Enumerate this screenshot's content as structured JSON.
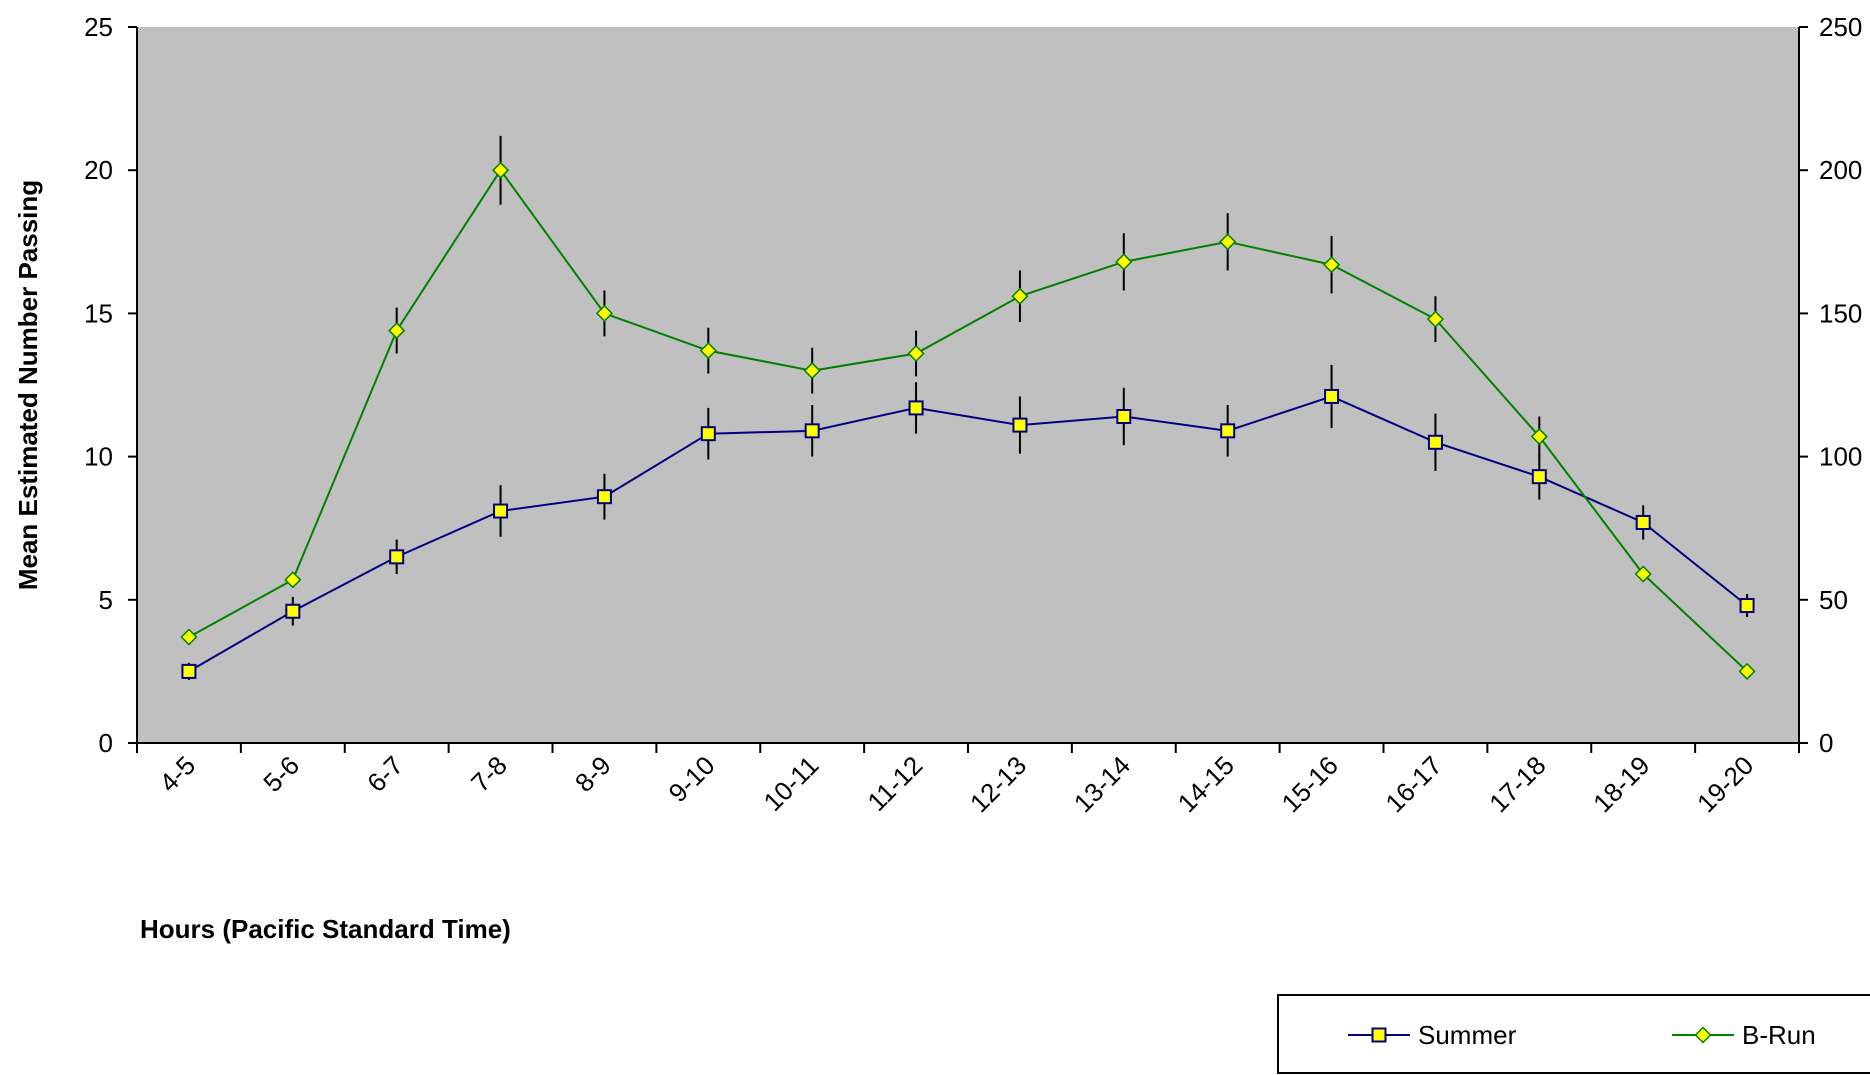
{
  "chart_data": {
    "type": "line",
    "categories": [
      "4-5",
      "5-6",
      "6-7",
      "7-8",
      "8-9",
      "9-10",
      "10-11",
      "11-12",
      "12-13",
      "13-14",
      "14-15",
      "15-16",
      "16-17",
      "17-18",
      "18-19",
      "19-20"
    ],
    "xlabel": "Hours (Pacific Standard Time)",
    "ylabel": "Mean Estimated Number Passing",
    "ylabel_right": "",
    "ylim": [
      0,
      25
    ],
    "y2lim": [
      0,
      250
    ],
    "yticks": [
      0,
      5,
      10,
      15,
      20,
      25
    ],
    "y2ticks": [
      0,
      50,
      100,
      150,
      200,
      250
    ],
    "grid": false,
    "plot_background": "#c0c0c0",
    "legend_position": "bottom-right",
    "series": [
      {
        "name": "Summer",
        "axis": "left",
        "color": "#000080",
        "marker": "square",
        "marker_fill": "#ffff00",
        "values": [
          2.5,
          4.6,
          6.5,
          8.1,
          8.6,
          10.8,
          10.9,
          11.7,
          11.1,
          11.4,
          10.9,
          12.1,
          10.5,
          9.3,
          7.7,
          4.8
        ],
        "error": [
          0.3,
          0.5,
          0.6,
          0.9,
          0.8,
          0.9,
          0.9,
          0.9,
          1.0,
          1.0,
          0.9,
          1.1,
          1.0,
          0.8,
          0.6,
          0.4
        ]
      },
      {
        "name": "B-Run",
        "axis": "right",
        "color": "#008000",
        "marker": "diamond",
        "marker_fill": "#ffff00",
        "values": [
          37,
          57,
          144,
          200,
          150,
          137,
          130,
          136,
          156,
          168,
          175,
          167,
          148,
          107,
          59,
          25
        ],
        "error": [
          0,
          0,
          8,
          12,
          8,
          8,
          8,
          8,
          9,
          10,
          10,
          10,
          8,
          7,
          0,
          0
        ]
      }
    ]
  }
}
